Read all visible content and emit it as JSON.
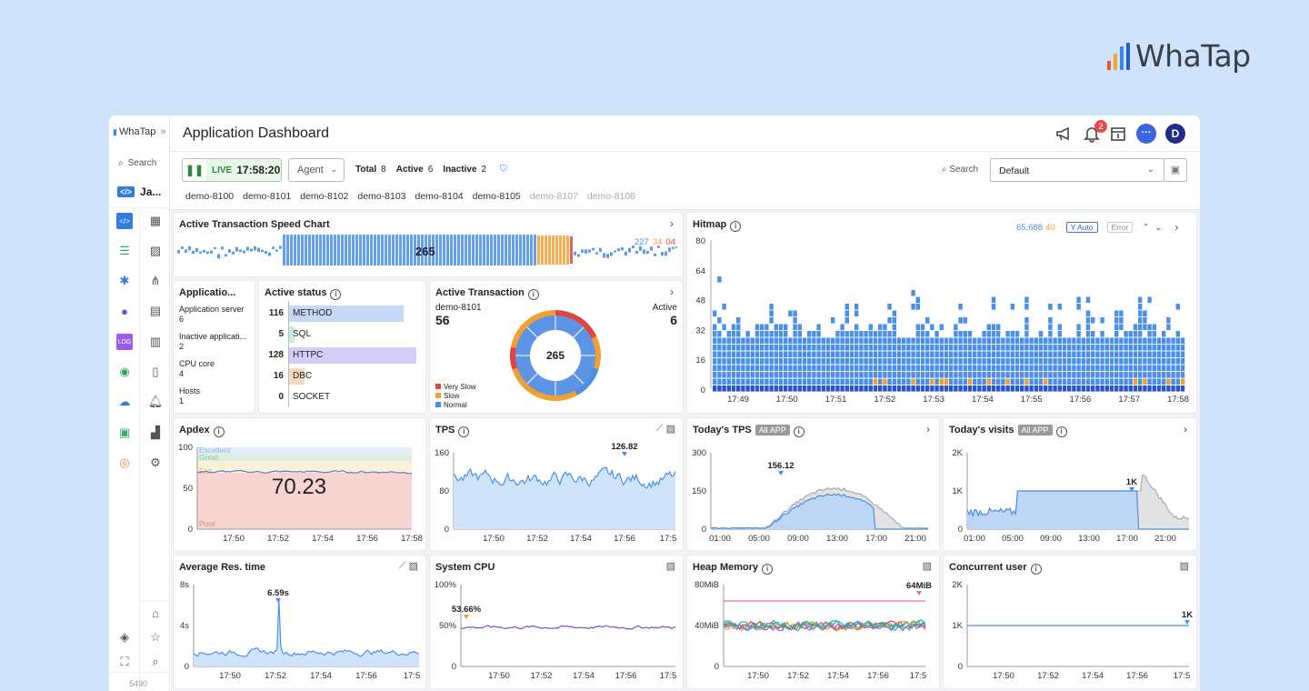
{
  "brand": {
    "name": "WhaTap"
  },
  "app": {
    "logo_text": "WhaTap",
    "search_label": "Search",
    "project_short": "Ja...",
    "footer_num": "5490"
  },
  "header": {
    "title": "Application Dashboard",
    "notif_count": "2",
    "avatar": "D"
  },
  "toolbar": {
    "live_label": "LIVE",
    "time": "17:58:20",
    "agent_select": "Agent",
    "total_label": "Total",
    "total": "8",
    "active_label": "Active",
    "active": "6",
    "inactive_label": "Inactive",
    "inactive": "2",
    "search_label": "Search",
    "preset": "Default"
  },
  "agents": [
    {
      "name": "demo-8100",
      "active": true
    },
    {
      "name": "demo-8101",
      "active": true
    },
    {
      "name": "demo-8102",
      "active": true
    },
    {
      "name": "demo-8103",
      "active": true
    },
    {
      "name": "demo-8104",
      "active": true
    },
    {
      "name": "demo-8105",
      "active": true
    },
    {
      "name": "demo-8107",
      "active": false
    },
    {
      "name": "demo-8108",
      "active": false
    }
  ],
  "speed": {
    "title": "Active Transaction Speed Chart",
    "count": "265",
    "n1": "227",
    "n2": "34",
    "n3": "04"
  },
  "appinfo": {
    "title": "Applicatio...",
    "items": [
      {
        "label": "Application server",
        "value": "6"
      },
      {
        "label": "Inactive applicati...",
        "value": "2"
      },
      {
        "label": "CPU core",
        "value": "4"
      },
      {
        "label": "Hosts",
        "value": "1"
      }
    ]
  },
  "active_status": {
    "title": "Active status",
    "rows": [
      {
        "value": "116",
        "label": "METHOD",
        "color": "#c5d9f6",
        "fill": 0.9
      },
      {
        "value": "5",
        "label": "SQL",
        "color": "#c9ebd8",
        "fill": 0.04
      },
      {
        "value": "128",
        "label": "HTTPC",
        "color": "#d4cdf6",
        "fill": 1.0
      },
      {
        "value": "16",
        "label": "DBC",
        "color": "#f3d9bd",
        "fill": 0.12
      },
      {
        "value": "0",
        "label": "SOCKET",
        "color": "#eee",
        "fill": 0
      }
    ]
  },
  "active_tx": {
    "title": "Active Transaction",
    "agent": "demo-8101",
    "agent_value": "56",
    "active_label": "Active",
    "active_value": "6",
    "center": "265",
    "legend": [
      {
        "label": "Very Slow",
        "color": "#e0463f"
      },
      {
        "label": "Slow",
        "color": "#f0a030"
      },
      {
        "label": "Normal",
        "color": "#4a90e8"
      }
    ]
  },
  "hitmap": {
    "title": "Hitmap",
    "count": "65,688",
    "err": "40",
    "auto_label": "Y Auto",
    "error_label": "Error",
    "yticks": [
      "80",
      "64",
      "48",
      "32",
      "16",
      "0"
    ],
    "xticks": [
      "17:49",
      "17:50",
      "17:51",
      "17:52",
      "17:53",
      "17:54",
      "17:55",
      "17:56",
      "17:57",
      "17:58"
    ]
  },
  "apdex": {
    "title": "Apdex",
    "value": "70.23",
    "bands": [
      "Excellent",
      "Good",
      "Fair",
      "Poor"
    ],
    "yticks": [
      "100",
      "50",
      "0"
    ],
    "xticks": [
      "17:50",
      "17:52",
      "17:54",
      "17:56",
      "17:58"
    ]
  },
  "tps": {
    "title": "TPS",
    "peak": "126.82",
    "yticks": [
      "160",
      "80",
      "0"
    ],
    "xticks": [
      "17:50",
      "17:52",
      "17:54",
      "17:56",
      "17:5"
    ]
  },
  "today_tps": {
    "title": "Today's TPS",
    "tag": "All APP",
    "peak": "156.12",
    "yticks": [
      "300",
      "150",
      "0"
    ],
    "xticks": [
      "01:00",
      "05:00",
      "09:00",
      "13:00",
      "17:00",
      "21:00"
    ]
  },
  "today_visits": {
    "title": "Today's visits",
    "tag": "All APP",
    "peak": "1K",
    "yticks": [
      "2K",
      "1K",
      "0"
    ],
    "xticks": [
      "01:00",
      "05:00",
      "09:00",
      "13:00",
      "17:00",
      "21:00"
    ]
  },
  "avg_res": {
    "title": "Average Res. time",
    "peak": "6.59s",
    "yticks": [
      "8s",
      "4s",
      "0"
    ],
    "xticks": [
      "17:50",
      "17:52",
      "17:54",
      "17:56",
      "17:5"
    ]
  },
  "sys_cpu": {
    "title": "System CPU",
    "peak": "53.66%",
    "yticks": [
      "100%",
      "50%",
      "0"
    ],
    "xticks": [
      "17:50",
      "17:52",
      "17:54",
      "17:56",
      "17:5"
    ]
  },
  "heap": {
    "title": "Heap Memory",
    "peak": "64MiB",
    "yticks": [
      "80MiB",
      "40MiB",
      "0"
    ],
    "xticks": [
      "17:50",
      "17:52",
      "17:54",
      "17:56",
      "17:5"
    ]
  },
  "concurrent": {
    "title": "Concurrent user",
    "peak": "1K",
    "yticks": [
      "2K",
      "1K",
      "0"
    ],
    "xticks": [
      "17:50",
      "17:52",
      "17:54",
      "17:56",
      "17:5"
    ]
  },
  "colors": {
    "blue": "#4a90e8",
    "blue_fill": "#cfe3fa",
    "orange": "#f0a030",
    "red": "#e0463f",
    "live_green": "#e8f6e8"
  }
}
